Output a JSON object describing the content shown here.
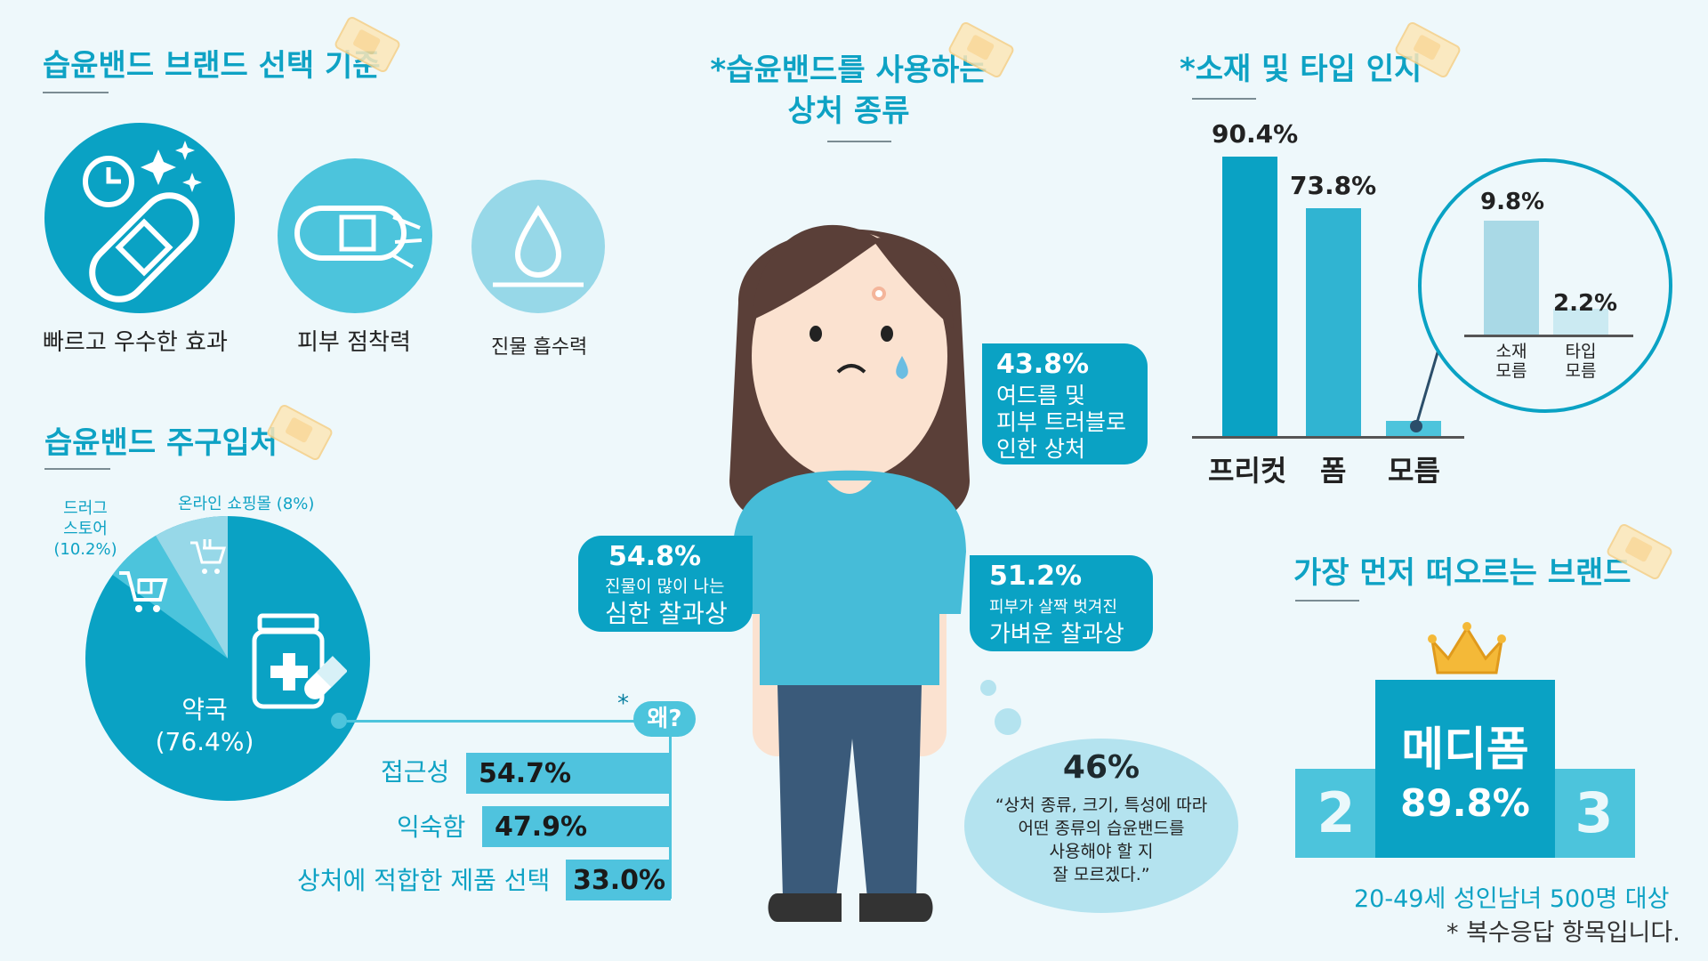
{
  "left": {
    "criteria_title": "습윤밴드 브랜드 선택 기준",
    "criteria": [
      {
        "label": "빠르고 우수한 효과",
        "icon": "fast-effect-bandage-icon"
      },
      {
        "label": "피부 점착력",
        "icon": "adhesion-bandage-icon"
      },
      {
        "label": "진물 흡수력",
        "icon": "water-drop-icon"
      }
    ],
    "purchase_title": "습윤밴드 주구입처",
    "purchase": {
      "pharmacy_label": "약국",
      "pharmacy_value": "(76.4%)",
      "drugstore_label_1": "드러그",
      "drugstore_label_2": "스토어",
      "drugstore_value": "(10.2%)",
      "online_label": "온라인 쇼핑몰 (8%)"
    },
    "why": {
      "asterisk": "*",
      "label": "왜?",
      "items": [
        {
          "label": "접근성",
          "value": "54.7%"
        },
        {
          "label": "익숙함",
          "value": "47.9%"
        },
        {
          "label": "상처에 적합한 제품 선택",
          "value": "33.0%"
        }
      ]
    }
  },
  "center": {
    "title_line1": "*습윤밴드를 사용하는",
    "title_line2": "상처 종류",
    "acne": {
      "value": "43.8%",
      "line1": "여드름 및",
      "line2": "피부 트러블로",
      "line3": "인한 상처"
    },
    "severe": {
      "value": "54.8%",
      "line1": "진물이 많이 나는",
      "line2": "심한 찰과상"
    },
    "light": {
      "value": "51.2%",
      "line1": "피부가 살짝 벗겨진",
      "line2": "가벼운 찰과상"
    },
    "thought": {
      "value": "46%",
      "line1": "“상처 종류, 크기, 특성에 따라",
      "line2": "어떤 종류의 습윤밴드를",
      "line3": "사용해야 할 지",
      "line4": "잘 모르겠다.”"
    }
  },
  "right": {
    "awareness_title": "*소재 및 타입 인지",
    "chart_data": {
      "type": "bar",
      "categories": [
        "프리컷",
        "폼",
        "모름"
      ],
      "values": [
        90.4,
        73.8,
        5
      ],
      "value_labels": [
        "90.4%",
        "73.8%",
        ""
      ],
      "zoom": {
        "categories_line1": [
          "소재",
          "타입"
        ],
        "categories_line2": [
          "모름",
          "모름"
        ],
        "values": [
          9.8,
          2.2
        ],
        "value_labels": [
          "9.8%",
          "2.2%"
        ]
      }
    },
    "brand_title": "가장 먼저 떠오르는 브랜드",
    "brand": {
      "name": "메디폼",
      "value": "89.8%",
      "second": "2",
      "third": "3"
    },
    "footnote1": "20-49세 성인남녀 500명 대상",
    "footnote2": "* 복수응답 항목입니다."
  }
}
